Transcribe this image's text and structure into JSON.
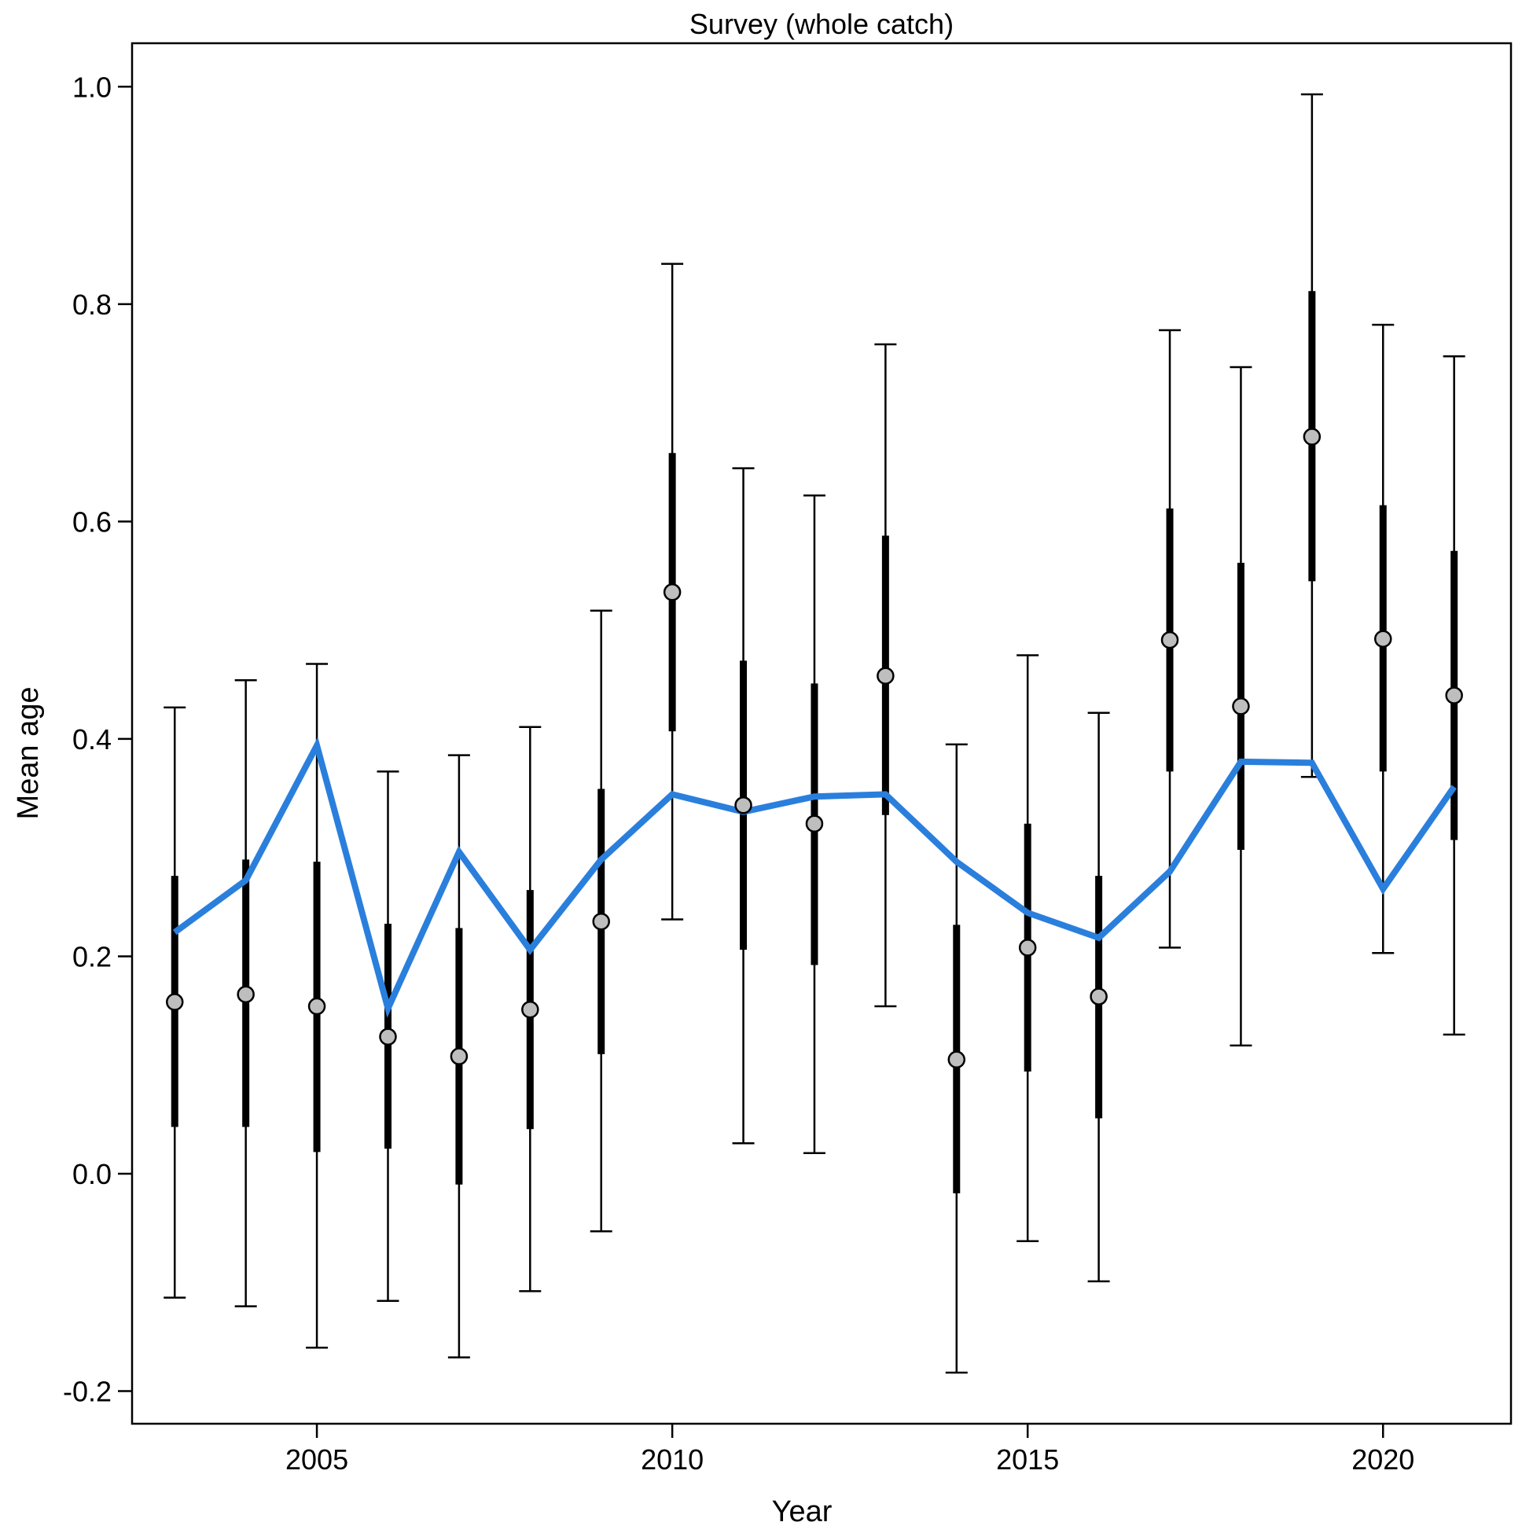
{
  "chart_data": {
    "type": "line",
    "title": "Survey (whole catch)",
    "xlabel": "Year",
    "ylabel": "Mean age",
    "xlim": [
      2002.4,
      2021.8
    ],
    "ylim": [
      -0.23,
      1.04
    ],
    "x_ticks": [
      2005,
      2010,
      2015,
      2020
    ],
    "x_tick_labels": [
      "2005",
      "2010",
      "2015",
      "2020"
    ],
    "y_ticks": [
      -0.2,
      0.0,
      0.2,
      0.4,
      0.6,
      0.8,
      1.0
    ],
    "y_tick_labels": [
      "-0.2",
      "0.0",
      "0.2",
      "0.4",
      "0.6",
      "0.8",
      "1.0"
    ],
    "grid": false,
    "colors": {
      "fit_line": "#2a7fdc",
      "points_fill": "#bebebe",
      "bars": "#000000"
    },
    "x": [
      2003,
      2004,
      2005,
      2006,
      2007,
      2008,
      2009,
      2010,
      2011,
      2012,
      2013,
      2014,
      2015,
      2016,
      2017,
      2018,
      2019,
      2020,
      2021
    ],
    "series": [
      {
        "kind": "observed",
        "values": [
          0.158,
          0.165,
          0.154,
          0.126,
          0.108,
          0.151,
          0.232,
          0.535,
          0.339,
          0.322,
          0.458,
          0.105,
          0.208,
          0.163,
          0.491,
          0.43,
          0.678,
          0.492,
          0.44
        ],
        "inner_low": [
          0.043,
          0.043,
          0.02,
          0.023,
          -0.01,
          0.041,
          0.11,
          0.407,
          0.206,
          0.192,
          0.33,
          -0.018,
          0.094,
          0.051,
          0.37,
          0.298,
          0.545,
          0.37,
          0.307
        ],
        "inner_high": [
          0.274,
          0.289,
          0.287,
          0.23,
          0.226,
          0.261,
          0.354,
          0.663,
          0.472,
          0.451,
          0.587,
          0.229,
          0.322,
          0.274,
          0.612,
          0.562,
          0.812,
          0.615,
          0.573
        ],
        "outer_low": [
          -0.114,
          -0.122,
          -0.16,
          -0.117,
          -0.169,
          -0.108,
          -0.053,
          0.234,
          0.028,
          0.019,
          0.154,
          -0.183,
          -0.062,
          -0.099,
          0.208,
          0.118,
          0.365,
          0.203,
          0.128
        ],
        "outer_high": [
          0.429,
          0.454,
          0.469,
          0.37,
          0.385,
          0.411,
          0.518,
          0.837,
          0.649,
          0.624,
          0.763,
          0.395,
          0.477,
          0.424,
          0.776,
          0.742,
          0.993,
          0.781,
          0.752
        ]
      },
      {
        "kind": "fitted",
        "values": [
          0.222,
          0.27,
          0.394,
          0.152,
          0.296,
          0.206,
          0.289,
          0.349,
          0.333,
          0.347,
          0.349,
          0.287,
          0.24,
          0.217,
          0.278,
          0.379,
          0.378,
          0.262,
          0.356
        ]
      }
    ]
  }
}
